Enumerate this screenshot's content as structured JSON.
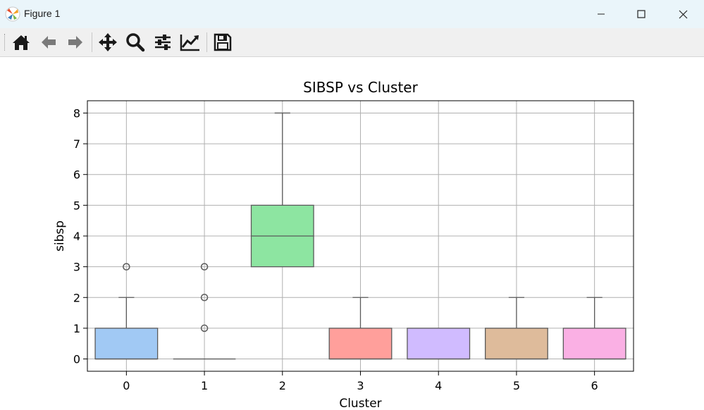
{
  "window": {
    "title": "Figure 1",
    "controls": [
      "minimize",
      "maximize",
      "close"
    ]
  },
  "toolbar": {
    "tools": [
      {
        "name": "home-icon"
      },
      {
        "name": "back-arrow-icon"
      },
      {
        "name": "forward-arrow-icon"
      },
      {
        "name": "pan-icon"
      },
      {
        "name": "zoom-icon"
      },
      {
        "name": "configure-subplots-icon"
      },
      {
        "name": "edit-axes-icon"
      },
      {
        "name": "save-icon"
      }
    ]
  },
  "chart_data": {
    "type": "box",
    "title": "SIBSP vs Cluster",
    "xlabel": "Cluster",
    "ylabel": "sibsp",
    "categories": [
      "0",
      "1",
      "2",
      "3",
      "4",
      "5",
      "6"
    ],
    "ylim": [
      -0.4,
      8.4
    ],
    "yticks": [
      0,
      1,
      2,
      3,
      4,
      5,
      6,
      7,
      8
    ],
    "grid": true,
    "boxes": [
      {
        "category": "0",
        "whisker_low": 0,
        "q1": 0,
        "median": 0,
        "q3": 1,
        "whisker_high": 2,
        "outliers": [
          3
        ],
        "color": "#a1c9f4"
      },
      {
        "category": "1",
        "whisker_low": 0,
        "q1": 0,
        "median": 0,
        "q3": 0,
        "whisker_high": 0,
        "outliers": [
          1,
          2,
          3
        ],
        "color": "#ffb482"
      },
      {
        "category": "2",
        "whisker_low": 3,
        "q1": 3,
        "median": 4,
        "q3": 5,
        "whisker_high": 8,
        "outliers": [],
        "color": "#8de5a1"
      },
      {
        "category": "3",
        "whisker_low": 0,
        "q1": 0,
        "median": 0,
        "q3": 1,
        "whisker_high": 2,
        "outliers": [],
        "color": "#ff9f9b"
      },
      {
        "category": "4",
        "whisker_low": 0,
        "q1": 0,
        "median": 0,
        "q3": 1,
        "whisker_high": 1,
        "outliers": [],
        "color": "#d0bbff"
      },
      {
        "category": "5",
        "whisker_low": 0,
        "q1": 0,
        "median": 0,
        "q3": 1,
        "whisker_high": 2,
        "outliers": [],
        "color": "#debb9b"
      },
      {
        "category": "6",
        "whisker_low": 0,
        "q1": 0,
        "median": 0,
        "q3": 1,
        "whisker_high": 2,
        "outliers": [],
        "color": "#fab0e4"
      }
    ]
  }
}
